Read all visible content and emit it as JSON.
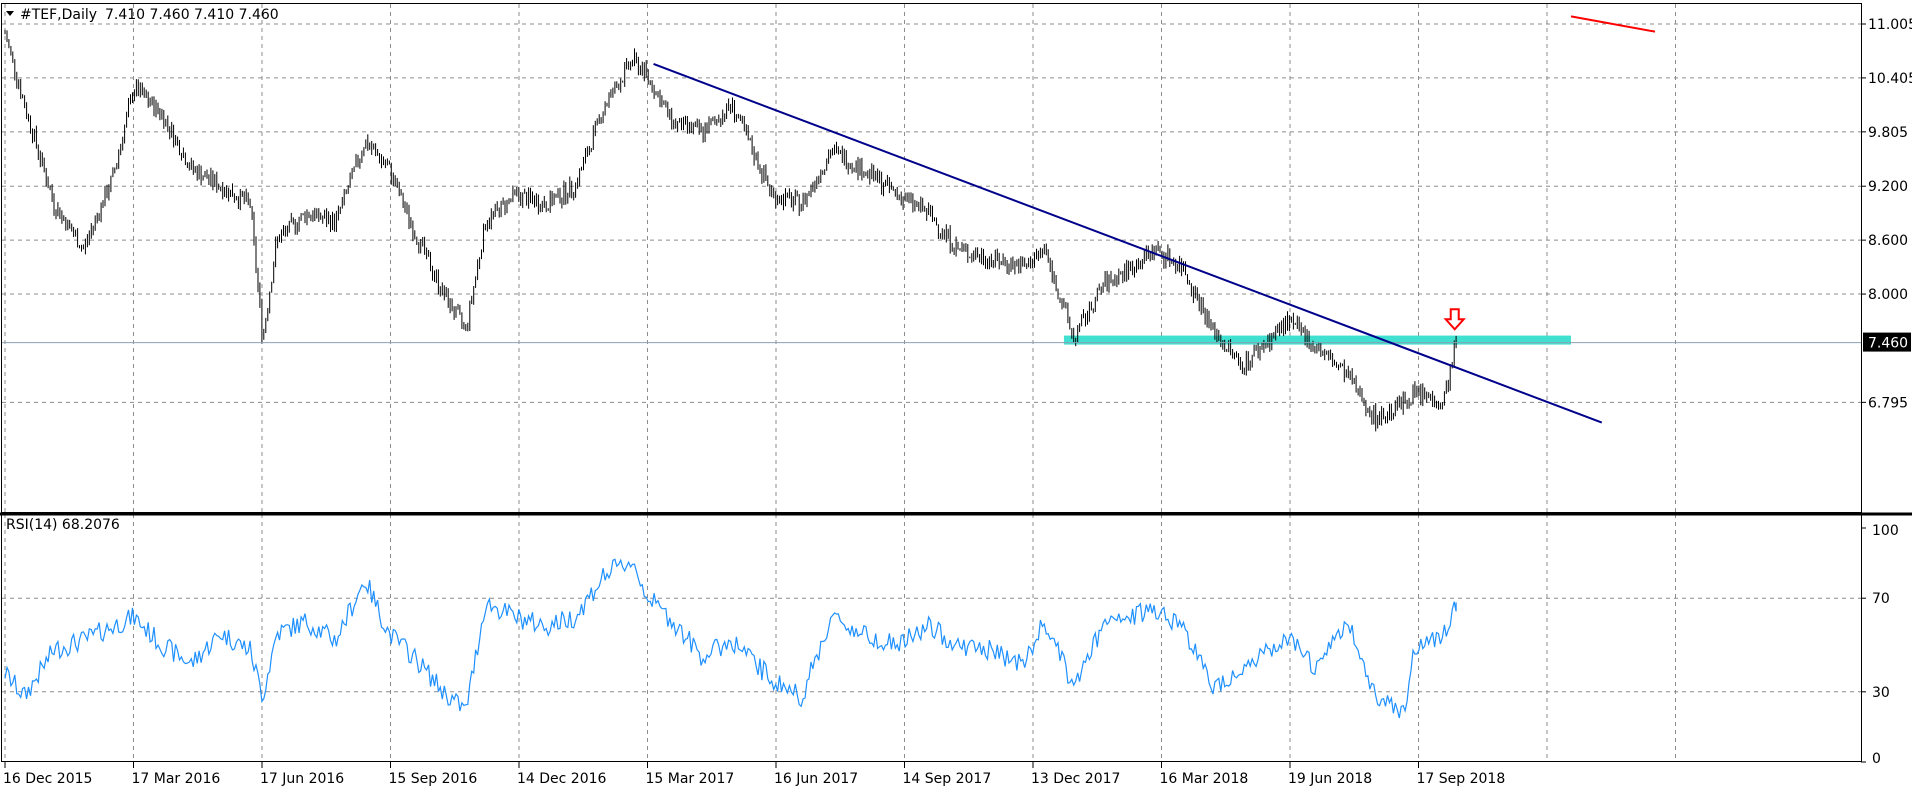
{
  "header": {
    "symbol": "#TEF,Daily",
    "ohlc": "7.410 7.460 7.410 7.460"
  },
  "indicator": {
    "label": "RSI(14) 68.2076"
  },
  "current_price_label": "7.460",
  "colors": {
    "background": "#ffffff",
    "grid": "#8c8c8c",
    "candles": "#000000",
    "downtrend_line": "#00008b",
    "upper_trend_line": "#ff0000",
    "support_zone": "#40e0d0",
    "rsi_line": "#1e90ff",
    "signal_arrow": "#ff0000",
    "price_label_bg": "#000000"
  },
  "chart_data": [
    {
      "type": "candlestick",
      "title": "",
      "series_name": "#TEF,Daily",
      "x_tick_labels": [
        "16 Dec 2015",
        "17 Mar 2016",
        "17 Jun 2016",
        "15 Sep 2016",
        "14 Dec 2016",
        "15 Mar 2017",
        "16 Jun 2017",
        "14 Sep 2017",
        "13 Dec 2017",
        "16 Mar 2018",
        "19 Jun 2018",
        "17 Sep 2018"
      ],
      "y_tick_labels": [
        "11.005",
        "10.405",
        "9.805",
        "9.200",
        "8.600",
        "8.000",
        "7.460",
        "6.795"
      ],
      "ylim": [
        6.2,
        11.1
      ],
      "grid": true,
      "close_path": {
        "x": [
          "2015-12-16",
          "2015-12-30",
          "2016-01-20",
          "2016-02-10",
          "2016-03-02",
          "2016-03-17",
          "2016-04-06",
          "2016-04-27",
          "2016-05-18",
          "2016-06-08",
          "2016-06-17",
          "2016-06-27",
          "2016-07-18",
          "2016-08-08",
          "2016-08-29",
          "2016-09-15",
          "2016-10-03",
          "2016-10-24",
          "2016-11-09",
          "2016-11-23",
          "2016-12-14",
          "2017-01-05",
          "2017-01-26",
          "2017-02-16",
          "2017-03-08",
          "2017-03-15",
          "2017-03-23",
          "2017-04-06",
          "2017-04-27",
          "2017-05-18",
          "2017-06-16",
          "2017-07-07",
          "2017-07-28",
          "2017-08-18",
          "2017-09-14",
          "2017-10-05",
          "2017-10-26",
          "2017-11-16",
          "2017-12-13",
          "2017-12-27",
          "2018-01-17",
          "2018-02-07",
          "2018-02-28",
          "2018-03-16",
          "2018-04-05",
          "2018-04-26",
          "2018-05-17",
          "2018-06-19",
          "2018-07-10",
          "2018-07-31",
          "2018-08-21",
          "2018-09-10",
          "2018-09-17",
          "2018-10-08",
          "2018-10-17"
        ],
        "close": [
          10.9,
          10.1,
          9.0,
          8.5,
          9.3,
          10.3,
          10.0,
          9.4,
          9.2,
          9.0,
          7.5,
          8.6,
          8.9,
          8.8,
          9.7,
          9.4,
          8.7,
          8.0,
          7.6,
          8.8,
          9.1,
          9.0,
          9.2,
          10.1,
          10.6,
          10.5,
          10.3,
          9.9,
          9.8,
          10.1,
          9.1,
          9.0,
          9.6,
          9.4,
          9.1,
          8.9,
          8.5,
          8.4,
          8.3,
          8.5,
          7.5,
          8.1,
          8.3,
          8.5,
          8.3,
          7.6,
          7.2,
          7.7,
          7.4,
          7.1,
          6.6,
          6.8,
          6.9,
          6.8,
          7.46
        ]
      },
      "horizontal_lines": [
        {
          "name": "current price",
          "y": 7.46
        }
      ],
      "trend_lines": [
        {
          "name": "downtrend",
          "x": [
            "2017-03-23",
            "2019-01-29"
          ],
          "y": [
            10.56,
            6.57
          ]
        },
        {
          "name": "upper trend",
          "x": [
            "2019-01-07",
            "2019-03-08"
          ],
          "y": [
            11.09,
            10.92
          ]
        }
      ],
      "zones": [
        {
          "name": "support",
          "x": [
            "2018-01-10",
            "2019-01-07"
          ],
          "y": 7.46
        }
      ],
      "annotations": [
        {
          "type": "down-arrow",
          "x": "2018-10-16",
          "y": 7.63
        }
      ]
    },
    {
      "type": "line",
      "title": "RSI(14) 68.2076",
      "series_name": "RSI(14)",
      "y_tick_labels": [
        "100",
        "70",
        "30",
        "0"
      ],
      "ylim": [
        0,
        100
      ],
      "levels": [
        70,
        30
      ],
      "path": {
        "x": [
          "2015-12-16",
          "2015-12-30",
          "2016-01-20",
          "2016-02-10",
          "2016-03-02",
          "2016-03-17",
          "2016-04-06",
          "2016-04-27",
          "2016-05-18",
          "2016-06-08",
          "2016-06-17",
          "2016-06-27",
          "2016-07-18",
          "2016-08-08",
          "2016-08-29",
          "2016-09-15",
          "2016-10-03",
          "2016-10-24",
          "2016-11-09",
          "2016-11-23",
          "2016-12-14",
          "2017-01-05",
          "2017-01-26",
          "2017-02-16",
          "2017-03-08",
          "2017-03-15",
          "2017-03-23",
          "2017-04-06",
          "2017-04-27",
          "2017-05-18",
          "2017-06-16",
          "2017-07-07",
          "2017-07-28",
          "2017-08-18",
          "2017-09-14",
          "2017-10-05",
          "2017-10-26",
          "2017-11-16",
          "2017-12-13",
          "2017-12-27",
          "2018-01-17",
          "2018-02-07",
          "2018-02-28",
          "2018-03-16",
          "2018-04-05",
          "2018-04-26",
          "2018-05-17",
          "2018-06-19",
          "2018-07-10",
          "2018-07-31",
          "2018-08-21",
          "2018-09-10",
          "2018-09-17",
          "2018-10-08",
          "2018-10-17"
        ],
        "rsi": [
          38,
          28,
          48,
          52,
          58,
          62,
          50,
          42,
          55,
          48,
          28,
          55,
          60,
          52,
          78,
          55,
          45,
          30,
          22,
          68,
          62,
          58,
          62,
          80,
          86,
          75,
          68,
          60,
          45,
          52,
          35,
          28,
          62,
          55,
          50,
          58,
          50,
          48,
          42,
          60,
          32,
          58,
          62,
          66,
          58,
          32,
          40,
          52,
          40,
          60,
          28,
          22,
          48,
          55,
          68.2
        ]
      }
    }
  ]
}
